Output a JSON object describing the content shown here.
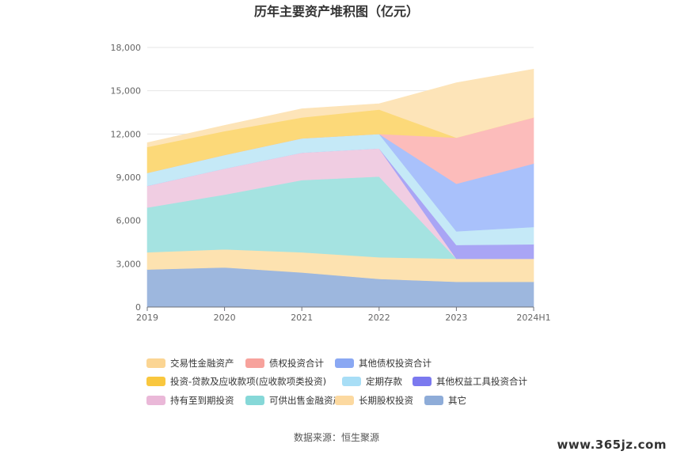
{
  "title": "历年主要资产堆积图（亿元）",
  "source": "数据来源：恒生聚源",
  "watermark": "www.365jz.com",
  "chart_data": {
    "type": "area",
    "stacked": true,
    "title": "历年主要资产堆积图（亿元）",
    "categories": [
      "2019",
      "2020",
      "2021",
      "2022",
      "2023",
      "2024H1"
    ],
    "ylim": [
      0,
      18000
    ],
    "yticks": [
      0,
      3000,
      6000,
      9000,
      12000,
      15000,
      18000
    ],
    "ytick_labels": [
      "0",
      "3,000",
      "6,000",
      "9,000",
      "12,000",
      "15,000",
      "18,000"
    ],
    "grid": true,
    "legend_position": "bottom",
    "series": [
      {
        "name": "其它",
        "color": "#9db7de",
        "values": [
          2600,
          2750,
          2400,
          1950,
          1750,
          1750
        ]
      },
      {
        "name": "长期股权投资",
        "color": "#fde2b0",
        "values": [
          1200,
          1250,
          1400,
          1500,
          1600,
          1600
        ]
      },
      {
        "name": "可供出售金融资产",
        "color": "#a5e3e1",
        "values": [
          3100,
          3800,
          5000,
          5600,
          0,
          0
        ]
      },
      {
        "name": "持有至到期投资",
        "color": "#f0cde2",
        "values": [
          1500,
          1800,
          1900,
          1950,
          0,
          0
        ]
      },
      {
        "name": "其他权益工具投资合计",
        "color": "#a9a5f5",
        "values": [
          0,
          0,
          0,
          0,
          950,
          1000
        ]
      },
      {
        "name": "定期存款",
        "color": "#c5e9f7",
        "values": [
          900,
          950,
          1000,
          1000,
          950,
          1200
        ]
      },
      {
        "name": "其他债权投资合计",
        "color": "#a9c1fb",
        "values": [
          0,
          0,
          0,
          0,
          3300,
          4400
        ]
      },
      {
        "name": "债权投资合计",
        "color": "#fcbcbb",
        "values": [
          0,
          0,
          0,
          0,
          3200,
          3200
        ]
      },
      {
        "name": "投资-贷款及应收款项(应收款项类投资)",
        "color": "#fcd979",
        "values": [
          1800,
          1650,
          1450,
          1700,
          0,
          0
        ]
      },
      {
        "name": "交易性金融资产",
        "color": "#fde4b8",
        "values": [
          300,
          400,
          600,
          400,
          3800,
          3350
        ]
      }
    ],
    "legend_rows": [
      [
        {
          "name": "交易性金融资产",
          "color": "#fbd593"
        },
        {
          "name": "债权投资合计",
          "color": "#f7a29c"
        },
        {
          "name": "其他债权投资合计",
          "color": "#8aa8f3"
        }
      ],
      [
        {
          "name": "投资-贷款及应收款项(应收款项类投资)",
          "color": "#f9c73e"
        },
        {
          "name": "定期存款",
          "color": "#a8def6"
        },
        {
          "name": "其他权益工具投资合计",
          "color": "#7b79ef"
        }
      ],
      [
        {
          "name": "持有至到期投资",
          "color": "#eab8d8"
        },
        {
          "name": "可供出售金融资产",
          "color": "#86d8d8"
        },
        {
          "name": "长期股权投资",
          "color": "#fcd9a0"
        },
        {
          "name": "其它",
          "color": "#8eacd8"
        }
      ]
    ]
  }
}
